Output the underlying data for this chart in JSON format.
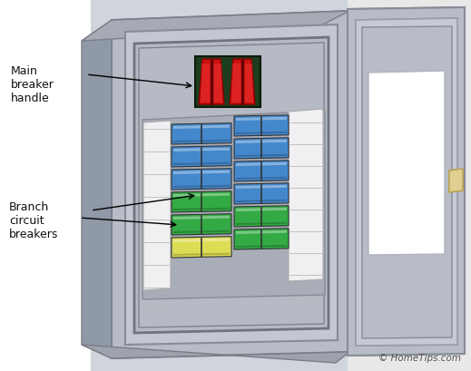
{
  "bg_color": "#ffffff",
  "panel_front_color": "#b8bcc6",
  "panel_left_color": "#9099a8",
  "panel_bottom_color": "#9da2ac",
  "panel_top_color": "#a5aab5",
  "inner_face_color": "#c2c7d2",
  "inner_recess_color": "#b5bac5",
  "inner_dark_color": "#9fa4af",
  "breaker_bg_color": "#a8adb8",
  "label_strip_color": "#f0f0f2",
  "label_line_color": "#bbbbbb",
  "main_breaker_bg": "#1e3d1e",
  "main_breaker_red": "#cc1111",
  "main_breaker_red_dark": "#991111",
  "blue_breaker": "#4488cc",
  "blue_breaker_light": "#66aaee",
  "blue_breaker_dark": "#2266aa",
  "green_breaker": "#33aa44",
  "green_breaker_light": "#55cc66",
  "green_breaker_dark": "#117722",
  "yellow_breaker": "#dddd55",
  "yellow_breaker_light": "#eeeebb",
  "yellow_breaker_dark": "#aaaa22",
  "door_color": "#b8bcc6",
  "door_inner_color": "#c5cad4",
  "door_edge_color": "#a0a5b0",
  "door_shadow_color": "#888d98",
  "window_color": "#ffffff",
  "window_border": "#aaaacc",
  "latch_color": "#ddd090",
  "latch_dark": "#b8a050",
  "wall_color": "#d8dce8",
  "copyright_text": "© HomeTips.com",
  "annotation_main": "Main\nbreaker\nhandle",
  "annotation_branch": "Branch\ncircuit\nbreakers",
  "anno_fontsize": 9
}
